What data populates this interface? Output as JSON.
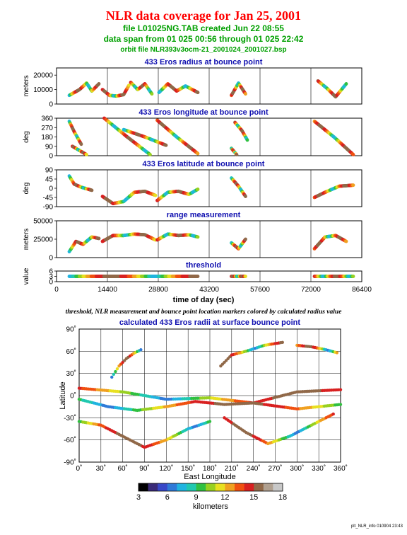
{
  "header": {
    "title": "NLR data coverage for Jan 25, 2001",
    "file_line": "file L01025NG.TAB created Jun 22 08:55",
    "span_line": "data span from 01 025 00:56 through 01 025 22:42",
    "orbit_line": "orbit file NLR393v3ocm-21_2001024_2001027.bsp"
  },
  "caption": "threshold, NLR measurement and bounce point location markers colored by calculated radius value",
  "footer": "plt_NLR_info 010904 23:43",
  "colors": {
    "title": "#ff0000",
    "subtitle": "#00a000",
    "panel_title": "#1010b0",
    "palette": [
      "#000000",
      "#3a2a78",
      "#3848c8",
      "#2f7ad8",
      "#20b4e0",
      "#20c8b0",
      "#30c040",
      "#98d020",
      "#e8e020",
      "#f0a020",
      "#f05010",
      "#d82020",
      "#906848",
      "#b0a090",
      "#c8c8c8"
    ]
  },
  "time_axis": {
    "label": "time of day (sec)",
    "ticks": [
      "0",
      "14400",
      "28800",
      "43200",
      "57600",
      "72000",
      "86400"
    ],
    "range": [
      0,
      86400
    ]
  },
  "chart_data": [
    {
      "type": "scatter",
      "title": "433 Eros radius at bounce point",
      "ylabel": "meters",
      "ylim": [
        0,
        25000
      ],
      "yticks": [
        "0",
        "10000",
        "20000"
      ],
      "yticks_values": [
        0,
        10000,
        20000
      ],
      "segments": [
        {
          "x": [
            3600,
            6500,
            8500,
            10000,
            12000
          ],
          "y": [
            6000,
            10000,
            14500,
            9000,
            14000
          ]
        },
        {
          "x": [
            13000,
            15000,
            17000,
            19000,
            20500
          ],
          "y": [
            10000,
            6000,
            5500,
            6500,
            13000
          ]
        },
        {
          "x": [
            21000,
            23000,
            25000,
            27000
          ],
          "y": [
            15000,
            10000,
            14000,
            7000
          ]
        },
        {
          "x": [
            29000,
            31500,
            34000,
            36500,
            40000
          ],
          "y": [
            8000,
            14000,
            9000,
            12500,
            8000
          ]
        },
        {
          "x": [
            49500,
            51500,
            53500
          ],
          "y": [
            6000,
            14500,
            7000
          ]
        },
        {
          "x": [
            74000,
            76500,
            79000,
            82000
          ],
          "y": [
            16000,
            11000,
            5000,
            14000
          ]
        }
      ]
    },
    {
      "type": "scatter",
      "title": "433 Eros longitude at bounce point",
      "ylabel": "deg",
      "ylim": [
        0,
        360
      ],
      "yticks": [
        "0",
        "90",
        "180",
        "270",
        "360"
      ],
      "yticks_values": [
        0,
        90,
        180,
        270,
        360
      ],
      "segments": [
        {
          "x": [
            3600,
            5000,
            7000
          ],
          "y": [
            330,
            230,
            110
          ]
        },
        {
          "x": [
            4500,
            6500,
            8500
          ],
          "y": [
            90,
            50,
            10
          ]
        },
        {
          "x": [
            13500,
            20000,
            26500
          ],
          "y": [
            360,
            180,
            10
          ]
        },
        {
          "x": [
            19000,
            25000,
            31000
          ],
          "y": [
            250,
            180,
            100
          ]
        },
        {
          "x": [
            28500,
            34000,
            40000
          ],
          "y": [
            340,
            180,
            20
          ]
        },
        {
          "x": [
            50500,
            52500,
            54000
          ],
          "y": [
            320,
            240,
            150
          ]
        },
        {
          "x": [
            49500,
            51000
          ],
          "y": [
            70,
            10
          ]
        },
        {
          "x": [
            73000,
            78500,
            84000
          ],
          "y": [
            330,
            180,
            10
          ]
        }
      ]
    },
    {
      "type": "scatter",
      "title": "433 Eros latitude at bounce point",
      "ylabel": "deg",
      "ylim": [
        -90,
        90
      ],
      "yticks": [
        "-90",
        "-45",
        "0",
        "45",
        "90"
      ],
      "yticks_values": [
        -90,
        -45,
        0,
        45,
        90
      ],
      "segments": [
        {
          "x": [
            3600,
            5000,
            7000,
            10000
          ],
          "y": [
            60,
            20,
            5,
            -10
          ]
        },
        {
          "x": [
            13000,
            16000,
            19000,
            22000,
            25000,
            28000
          ],
          "y": [
            -40,
            -75,
            -65,
            -20,
            -15,
            -35
          ]
        },
        {
          "x": [
            28500,
            31500,
            34500,
            37500,
            40000
          ],
          "y": [
            -60,
            -20,
            -15,
            -30,
            -5
          ]
        },
        {
          "x": [
            49500,
            51500,
            53500
          ],
          "y": [
            50,
            10,
            -40
          ]
        },
        {
          "x": [
            73000,
            76000,
            80000,
            84000
          ],
          "y": [
            -45,
            -20,
            10,
            15
          ]
        }
      ]
    },
    {
      "type": "scatter",
      "title": "range measurement",
      "ylabel": "meters",
      "ylim": [
        0,
        50000
      ],
      "yticks": [
        "0",
        "25000",
        "50000"
      ],
      "yticks_values": [
        0,
        25000,
        50000
      ],
      "segments": [
        {
          "x": [
            3600,
            5500,
            7500,
            10000,
            12000
          ],
          "y": [
            8000,
            22000,
            18000,
            28000,
            26000
          ]
        },
        {
          "x": [
            13000,
            16000,
            19000,
            22000,
            25000,
            28000
          ],
          "y": [
            22000,
            30000,
            30000,
            32000,
            31000,
            24000
          ]
        },
        {
          "x": [
            28500,
            31500,
            34500,
            37500,
            40000
          ],
          "y": [
            24000,
            32000,
            30000,
            31000,
            28000
          ]
        },
        {
          "x": [
            49500,
            51500,
            53500
          ],
          "y": [
            20000,
            12000,
            25000
          ]
        },
        {
          "x": [
            73000,
            76000,
            79000,
            82000
          ],
          "y": [
            12000,
            28000,
            30000,
            22000
          ]
        }
      ]
    },
    {
      "type": "scatter",
      "title": "threshold",
      "ylabel": "value",
      "ylim": [
        0,
        6
      ],
      "yticks": [
        "0",
        "3",
        "6"
      ],
      "yticks_values": [
        0,
        3,
        6
      ],
      "segments": [
        {
          "x": [
            3600,
            40000
          ],
          "y": [
            3,
            3
          ]
        },
        {
          "x": [
            49500,
            53500
          ],
          "y": [
            3,
            3
          ]
        },
        {
          "x": [
            73000,
            84000
          ],
          "y": [
            3,
            3
          ]
        }
      ]
    },
    {
      "type": "scatter",
      "title": "calculated 433 Eros radii at surface bounce point",
      "xlabel": "East Longitude",
      "ylabel": "Latitude",
      "xlim": [
        0,
        360
      ],
      "ylim": [
        -90,
        90
      ],
      "xticks": [
        "0˚",
        "30˚",
        "60˚",
        "90˚",
        "120˚",
        "150˚",
        "180˚",
        "210˚",
        "240˚",
        "270˚",
        "300˚",
        "330˚",
        "360˚"
      ],
      "yticks": [
        "-90˚",
        "-60˚",
        "-30˚",
        "0˚",
        "30˚",
        "60˚",
        "90˚"
      ],
      "tracks": [
        {
          "lon": [
            45,
            55,
            65,
            75,
            85
          ],
          "lat": [
            25,
            40,
            50,
            57,
            62
          ]
        },
        {
          "lon": [
            300,
            320,
            340,
            355
          ],
          "lat": [
            68,
            66,
            62,
            58
          ]
        },
        {
          "lon": [
            195,
            210,
            230,
            255,
            280
          ],
          "lat": [
            40,
            55,
            60,
            68,
            72
          ]
        },
        {
          "lon": [
            0,
            60,
            120,
            180,
            240,
            300,
            360
          ],
          "lat": [
            10,
            5,
            -5,
            -3,
            -10,
            5,
            8
          ]
        },
        {
          "lon": [
            0,
            40,
            80,
            120,
            160,
            200,
            240,
            300,
            360
          ],
          "lat": [
            -5,
            -15,
            -20,
            -15,
            -8,
            -12,
            -10,
            -18,
            -12
          ]
        },
        {
          "lon": [
            0,
            30,
            60,
            90,
            120,
            150,
            180
          ],
          "lat": [
            -35,
            -40,
            -55,
            -70,
            -60,
            -45,
            -35
          ]
        },
        {
          "lon": [
            200,
            230,
            260,
            290,
            320,
            350
          ],
          "lat": [
            -30,
            -50,
            -65,
            -55,
            -40,
            -25
          ]
        }
      ]
    }
  ],
  "colorbar": {
    "label": "kilometers",
    "ticks": [
      "3",
      "6",
      "9",
      "12",
      "15",
      "18"
    ],
    "range": [
      3,
      18
    ]
  }
}
